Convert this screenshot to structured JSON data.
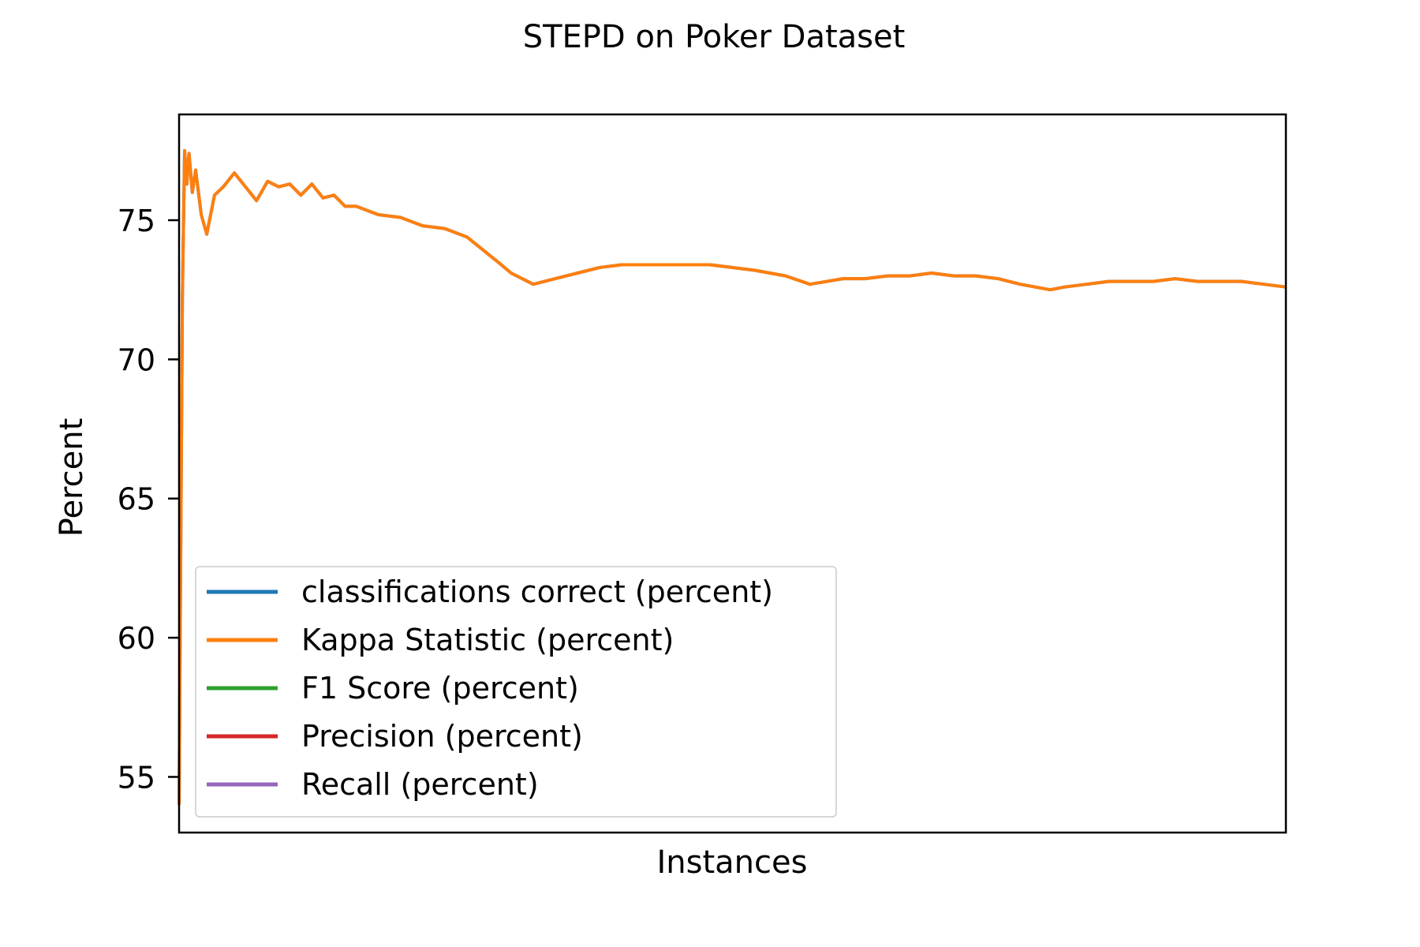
{
  "chart_data": {
    "type": "line",
    "title": "STEPD on Poker Dataset",
    "xlabel": "Instances",
    "ylabel": "Percent",
    "xlim": [
      0,
      100
    ],
    "ylim": [
      53.0,
      78.8
    ],
    "yticks": [
      55,
      60,
      65,
      70,
      75
    ],
    "show_xticks": false,
    "grid": false,
    "legend_position": "lower-left",
    "series": [
      {
        "name": "classifications correct (percent)",
        "color": "#1f77b4",
        "x": [
          0,
          0.3,
          0.5,
          0.7,
          0.9,
          1.2,
          1.5,
          2.0,
          2.5,
          3.2,
          4.0,
          5.0,
          6.0,
          7.0,
          8.0,
          9.0,
          10.0,
          11.0,
          12.0,
          13.0,
          14.0,
          15.0,
          16.0,
          18.0,
          20.0,
          22.0,
          24.0,
          26.0,
          28.8,
          30.0,
          32.0,
          34.0,
          36.0,
          38.0,
          40.0,
          42.0,
          44.0,
          46.0,
          48.0,
          50.0,
          52.0,
          54.8,
          57.0,
          60.0,
          62.0,
          64.0,
          66.0,
          68.0,
          70.0,
          72.0,
          74.0,
          76.0,
          78.7,
          80.0,
          82.0,
          84.0,
          86.0,
          88.0,
          90.0,
          92.0,
          94.0,
          96.0,
          98.0,
          100.0
        ],
        "values": [
          54.0,
          72.2,
          77.5,
          76.3,
          77.4,
          76.0,
          76.8,
          75.2,
          74.5,
          75.9,
          76.2,
          76.7,
          76.2,
          75.7,
          76.4,
          76.2,
          76.3,
          75.9,
          76.3,
          75.8,
          75.9,
          75.5,
          75.5,
          75.2,
          75.1,
          74.8,
          74.7,
          74.4,
          73.5,
          73.1,
          72.7,
          72.9,
          73.1,
          73.3,
          73.4,
          73.4,
          73.4,
          73.4,
          73.4,
          73.3,
          73.2,
          73.0,
          72.7,
          72.9,
          72.9,
          73.0,
          73.0,
          73.1,
          73.0,
          73.0,
          72.9,
          72.7,
          72.5,
          72.6,
          72.7,
          72.8,
          72.8,
          72.8,
          72.9,
          72.8,
          72.8,
          72.8,
          72.7,
          72.6
        ]
      },
      {
        "name": "Kappa Statistic (percent)",
        "color": "#ff7f0e",
        "x": [
          0,
          0.3,
          0.5,
          0.7,
          0.9,
          1.2,
          1.5,
          2.0,
          2.5,
          3.2,
          4.0,
          5.0,
          6.0,
          7.0,
          8.0,
          9.0,
          10.0,
          11.0,
          12.0,
          13.0,
          14.0,
          15.0,
          16.0,
          18.0,
          20.0,
          22.0,
          24.0,
          26.0,
          28.8,
          30.0,
          32.0,
          34.0,
          36.0,
          38.0,
          40.0,
          42.0,
          44.0,
          46.0,
          48.0,
          50.0,
          52.0,
          54.8,
          57.0,
          60.0,
          62.0,
          64.0,
          66.0,
          68.0,
          70.0,
          72.0,
          74.0,
          76.0,
          78.7,
          80.0,
          82.0,
          84.0,
          86.0,
          88.0,
          90.0,
          92.0,
          94.0,
          96.0,
          98.0,
          100.0
        ],
        "values": [
          54.0,
          72.2,
          77.5,
          76.3,
          77.4,
          76.0,
          76.8,
          75.2,
          74.5,
          75.9,
          76.2,
          76.7,
          76.2,
          75.7,
          76.4,
          76.2,
          76.3,
          75.9,
          76.3,
          75.8,
          75.9,
          75.5,
          75.5,
          75.2,
          75.1,
          74.8,
          74.7,
          74.4,
          73.5,
          73.1,
          72.7,
          72.9,
          73.1,
          73.3,
          73.4,
          73.4,
          73.4,
          73.4,
          73.4,
          73.3,
          73.2,
          73.0,
          72.7,
          72.9,
          72.9,
          73.0,
          73.0,
          73.1,
          73.0,
          73.0,
          72.9,
          72.7,
          72.5,
          72.6,
          72.7,
          72.8,
          72.8,
          72.8,
          72.9,
          72.8,
          72.8,
          72.8,
          72.7,
          72.6
        ]
      },
      {
        "name": "F1 Score (percent)",
        "color": "#2ca02c",
        "x": [],
        "values": []
      },
      {
        "name": "Precision (percent)",
        "color": "#d62728",
        "x": [],
        "values": []
      },
      {
        "name": "Recall (percent)",
        "color": "#9467bd",
        "x": [],
        "values": []
      }
    ]
  }
}
